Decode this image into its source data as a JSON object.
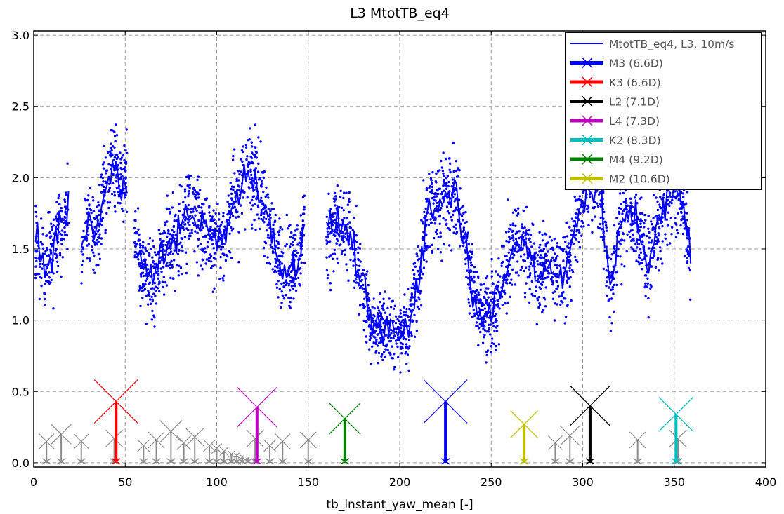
{
  "chart_data": {
    "type": "scatter",
    "title": "L3 MtotTB_eq4",
    "xlabel": "tb_instant_yaw_mean [-]",
    "ylabel": "",
    "xlim": [
      0,
      400
    ],
    "ylim": [
      -0.03,
      3.03
    ],
    "x_ticks": [
      "0",
      "50",
      "100",
      "150",
      "200",
      "250",
      "300",
      "350",
      "400"
    ],
    "y_ticks": [
      "0.0",
      "0.5",
      "1.0",
      "1.5",
      "2.0",
      "2.5",
      "3.0"
    ],
    "grid": true,
    "legend_position": "top-right",
    "series": [
      {
        "name": "MtotTB_eq4, L3, 10m/s",
        "kind": "line-and-points",
        "color": "#0000ff"
      }
    ],
    "profile_segments": [
      {
        "x": [
          1,
          3,
          6,
          10,
          14,
          17,
          19
        ],
        "y": [
          1.55,
          1.45,
          1.35,
          1.5,
          1.65,
          1.72,
          1.78
        ]
      },
      {
        "x": [
          26,
          30,
          34,
          38,
          42,
          45,
          48,
          51
        ],
        "y": [
          1.5,
          1.7,
          1.6,
          1.85,
          2.0,
          2.08,
          1.9,
          2.05
        ]
      },
      {
        "x": [
          55,
          60,
          65,
          70,
          75,
          80,
          85,
          90,
          95,
          100,
          105,
          110,
          115,
          120,
          125,
          130,
          135,
          140,
          145,
          148
        ],
        "y": [
          1.55,
          1.35,
          1.3,
          1.45,
          1.55,
          1.65,
          1.75,
          1.7,
          1.62,
          1.55,
          1.6,
          1.85,
          2.0,
          2.02,
          1.85,
          1.6,
          1.4,
          1.35,
          1.45,
          1.75
        ]
      },
      {
        "x": [
          160,
          165,
          170,
          175,
          180,
          185,
          190,
          195,
          200,
          205,
          210,
          215,
          220,
          225,
          230,
          235,
          240,
          245,
          250,
          255,
          260,
          265,
          270,
          275,
          280,
          285,
          290,
          295,
          300,
          305,
          310,
          315,
          320,
          325,
          330,
          335,
          340,
          345,
          350,
          355,
          359
        ],
        "y": [
          1.6,
          1.7,
          1.65,
          1.5,
          1.2,
          0.95,
          0.92,
          0.95,
          0.9,
          0.95,
          1.3,
          1.75,
          1.8,
          1.85,
          1.95,
          1.6,
          1.2,
          1.05,
          1.05,
          1.15,
          1.45,
          1.55,
          1.5,
          1.3,
          1.4,
          1.35,
          1.3,
          1.6,
          1.9,
          1.92,
          1.9,
          1.2,
          1.6,
          1.75,
          1.7,
          1.4,
          1.6,
          1.8,
          1.9,
          1.85,
          1.45
        ]
      }
    ],
    "scatter_spread": 0.16,
    "scatter_per_degree": 10,
    "turbines_highlighted": [
      {
        "name": "M3 (6.6D)",
        "x": 225,
        "height": 0.43,
        "color": "#0000ff"
      },
      {
        "name": "K3 (6.6D)",
        "x": 45,
        "height": 0.43,
        "color": "#ff0000"
      },
      {
        "name": "L2 (7.1D)",
        "x": 304,
        "height": 0.4,
        "color": "#000000"
      },
      {
        "name": "L4 (7.3D)",
        "x": 122,
        "height": 0.39,
        "color": "#bf00bf"
      },
      {
        "name": "K2 (8.3D)",
        "x": 351,
        "height": 0.34,
        "color": "#00bfbf"
      },
      {
        "name": "M4 (9.2D)",
        "x": 170,
        "height": 0.31,
        "color": "#008000"
      },
      {
        "name": "M2 (10.6D)",
        "x": 268,
        "height": 0.27,
        "color": "#bfbf00"
      }
    ],
    "turbines_other": [
      {
        "x": 7,
        "height": 0.15
      },
      {
        "x": 15,
        "height": 0.2
      },
      {
        "x": 26,
        "height": 0.15
      },
      {
        "x": 44,
        "height": 0.17
      },
      {
        "x": 60,
        "height": 0.12
      },
      {
        "x": 67,
        "height": 0.16
      },
      {
        "x": 75,
        "height": 0.22
      },
      {
        "x": 82,
        "height": 0.14
      },
      {
        "x": 88,
        "height": 0.18
      },
      {
        "x": 96,
        "height": 0.12
      },
      {
        "x": 100,
        "height": 0.1
      },
      {
        "x": 104,
        "height": 0.08
      },
      {
        "x": 108,
        "height": 0.06
      },
      {
        "x": 111,
        "height": 0.05
      },
      {
        "x": 114,
        "height": 0.04
      },
      {
        "x": 117,
        "height": 0.03
      },
      {
        "x": 121,
        "height": 0.17
      },
      {
        "x": 129,
        "height": 0.12
      },
      {
        "x": 136,
        "height": 0.15
      },
      {
        "x": 150,
        "height": 0.16
      },
      {
        "x": 285,
        "height": 0.14
      },
      {
        "x": 293,
        "height": 0.19
      },
      {
        "x": 330,
        "height": 0.16
      },
      {
        "x": 352,
        "height": 0.17
      }
    ],
    "other_turbine_color": "#8c8c8c"
  }
}
